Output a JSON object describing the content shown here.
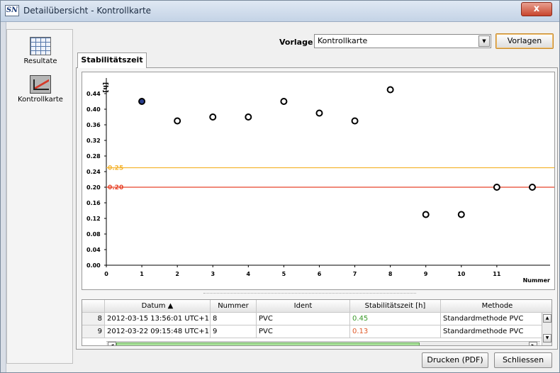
{
  "window": {
    "app_icon_label": "SN",
    "title": "Detailübersicht - Kontrollkarte",
    "close_glyph": "x"
  },
  "sidebar": {
    "items": [
      {
        "label": "Resultate",
        "icon": "table-icon"
      },
      {
        "label": "Kontrollkarte",
        "icon": "control-chart-icon"
      }
    ]
  },
  "template": {
    "label": "Vorlage",
    "selected": "Kontrollkarte",
    "button": "Vorlagen"
  },
  "tabs": [
    {
      "label": "Stabilitätszeit",
      "active": true
    }
  ],
  "chart_data": {
    "type": "scatter",
    "ylabel": "[h]",
    "xlabel": "Nummer",
    "xlim": [
      0,
      12.5
    ],
    "ylim": [
      0,
      0.48
    ],
    "x_ticks": [
      "0",
      "1",
      "2",
      "3",
      "4",
      "5",
      "6",
      "7",
      "8",
      "9",
      "10",
      "11"
    ],
    "y_ticks": [
      "0.00",
      "0.04",
      "0.08",
      "0.12",
      "0.16",
      "0.20",
      "0.24",
      "0.28",
      "0.32",
      "0.36",
      "0.40",
      "0.44"
    ],
    "points": [
      {
        "x": 1,
        "y": 0.42,
        "selected": true
      },
      {
        "x": 2,
        "y": 0.37
      },
      {
        "x": 3,
        "y": 0.38
      },
      {
        "x": 4,
        "y": 0.38
      },
      {
        "x": 5,
        "y": 0.42
      },
      {
        "x": 6,
        "y": 0.39
      },
      {
        "x": 7,
        "y": 0.37
      },
      {
        "x": 8,
        "y": 0.45
      },
      {
        "x": 9,
        "y": 0.13
      },
      {
        "x": 10,
        "y": 0.13
      },
      {
        "x": 11,
        "y": 0.2
      },
      {
        "x": 12,
        "y": 0.2
      }
    ],
    "limits": [
      {
        "label": "0.25",
        "value": 0.25,
        "color": "#f5b533"
      },
      {
        "label": "0.20",
        "value": 0.2,
        "color": "#e8442a"
      }
    ],
    "colors": {
      "selected_fill": "#2a3f8f",
      "marker_stroke": "#000000"
    }
  },
  "table": {
    "columns": [
      "",
      "Datum ▲",
      "Nummer",
      "Ident",
      "Stabilitätszeit [h]",
      "Methode"
    ],
    "rows": [
      {
        "idx": "8",
        "datum": "2012-03-15 13:56:01 UTC+1",
        "nummer": "8",
        "ident": "PVC",
        "stab": "0.45",
        "stab_color": "green",
        "methode": "Standardmethode PVC"
      },
      {
        "idx": "9",
        "datum": "2012-03-22 09:15:48 UTC+1",
        "nummer": "9",
        "ident": "PVC",
        "stab": "0.13",
        "stab_color": "red",
        "methode": "Standardmethode PVC"
      }
    ]
  },
  "footer": {
    "print_button": "Drucken (PDF)",
    "close_button": "Schliessen"
  }
}
